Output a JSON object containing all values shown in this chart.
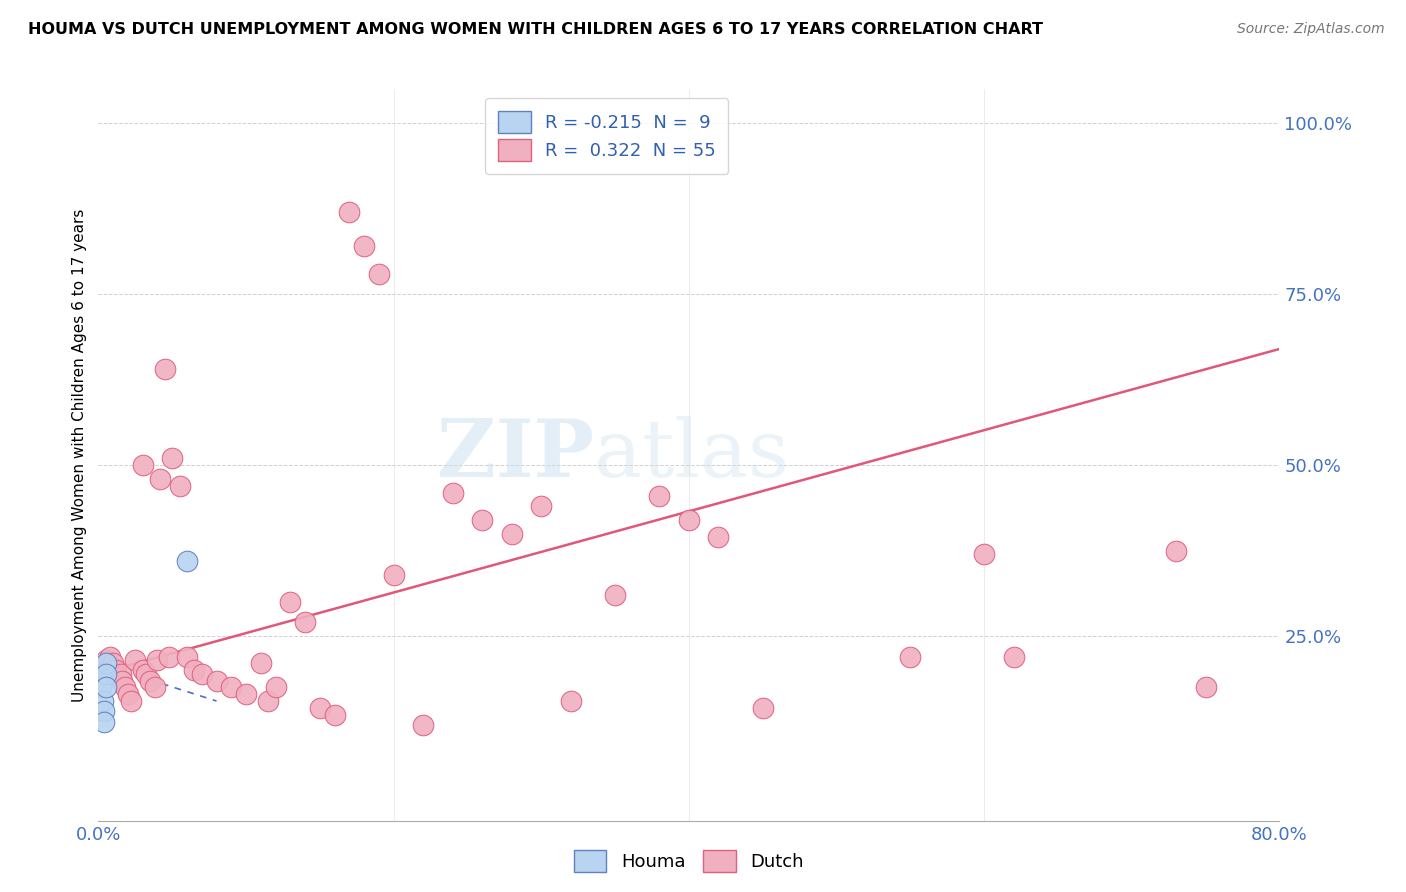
{
  "title": "HOUMA VS DUTCH UNEMPLOYMENT AMONG WOMEN WITH CHILDREN AGES 6 TO 17 YEARS CORRELATION CHART",
  "source": "Source: ZipAtlas.com",
  "ylabel": "Unemployment Among Women with Children Ages 6 to 17 years",
  "legend_labels": [
    "Houma",
    "Dutch"
  ],
  "houma_R": "-0.215",
  "houma_N": "9",
  "dutch_R": "0.322",
  "dutch_N": "55",
  "houma_color": "#b8d4f0",
  "dutch_color": "#f0b0c0",
  "houma_edge_color": "#6080c0",
  "dutch_edge_color": "#e06080",
  "houma_line_color": "#5070b8",
  "dutch_line_color": "#e05878",
  "watermark_zip": "ZIP",
  "watermark_atlas": "atlas",
  "background_color": "#ffffff",
  "xlim": [
    0.0,
    0.8
  ],
  "ylim": [
    -0.02,
    1.05
  ],
  "houma_scatter_x": [
    0.002,
    0.002,
    0.003,
    0.004,
    0.004,
    0.005,
    0.005,
    0.005,
    0.06
  ],
  "houma_scatter_y": [
    0.195,
    0.175,
    0.155,
    0.14,
    0.125,
    0.21,
    0.195,
    0.175,
    0.36
  ],
  "dutch_scatter_x": [
    0.005,
    0.008,
    0.01,
    0.012,
    0.013,
    0.015,
    0.016,
    0.018,
    0.02,
    0.022,
    0.025,
    0.03,
    0.03,
    0.032,
    0.035,
    0.038,
    0.04,
    0.042,
    0.045,
    0.048,
    0.05,
    0.055,
    0.06,
    0.065,
    0.07,
    0.08,
    0.09,
    0.1,
    0.11,
    0.115,
    0.12,
    0.13,
    0.14,
    0.15,
    0.16,
    0.17,
    0.18,
    0.19,
    0.2,
    0.22,
    0.24,
    0.26,
    0.28,
    0.3,
    0.32,
    0.35,
    0.38,
    0.4,
    0.42,
    0.45,
    0.55,
    0.6,
    0.62,
    0.73,
    0.75
  ],
  "dutch_scatter_y": [
    0.215,
    0.22,
    0.21,
    0.2,
    0.19,
    0.195,
    0.185,
    0.175,
    0.165,
    0.155,
    0.215,
    0.5,
    0.2,
    0.195,
    0.185,
    0.175,
    0.215,
    0.48,
    0.64,
    0.22,
    0.51,
    0.47,
    0.22,
    0.2,
    0.195,
    0.185,
    0.175,
    0.165,
    0.21,
    0.155,
    0.175,
    0.3,
    0.27,
    0.145,
    0.135,
    0.87,
    0.82,
    0.78,
    0.34,
    0.12,
    0.46,
    0.42,
    0.4,
    0.44,
    0.155,
    0.31,
    0.455,
    0.42,
    0.395,
    0.145,
    0.22,
    0.37,
    0.22,
    0.375,
    0.175
  ],
  "dutch_trend_x": [
    0.0,
    0.8
  ],
  "dutch_trend_y": [
    0.195,
    0.67
  ],
  "houma_trend_x": [
    0.0,
    0.08
  ],
  "houma_trend_y": [
    0.21,
    0.155
  ]
}
